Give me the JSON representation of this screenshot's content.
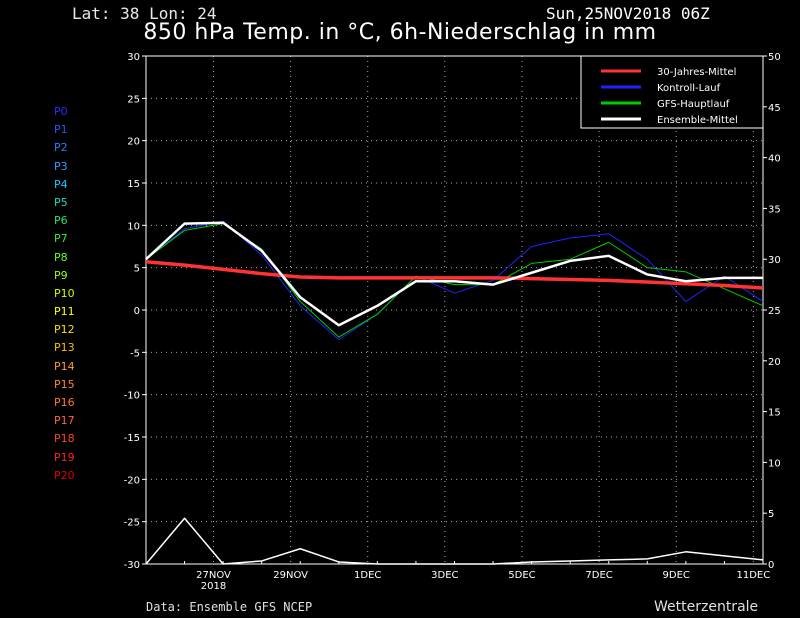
{
  "header": {
    "location": "Lat: 38 Lon: 24",
    "run": "Sun,25NOV2018 06Z",
    "title": "850 hPa Temp. in °C, 6h-Niederschlag in mm"
  },
  "footer": {
    "source": "Data: Ensemble GFS NCEP",
    "brand": "Wetterzentrale"
  },
  "members": [
    {
      "label": "P0",
      "color": "#2a2aff"
    },
    {
      "label": "P1",
      "color": "#2a55ff"
    },
    {
      "label": "P2",
      "color": "#2a7fff"
    },
    {
      "label": "P3",
      "color": "#2aa0ff"
    },
    {
      "label": "P4",
      "color": "#22c8ff"
    },
    {
      "label": "P5",
      "color": "#22d8c0"
    },
    {
      "label": "P6",
      "color": "#22e070"
    },
    {
      "label": "P7",
      "color": "#33ee33"
    },
    {
      "label": "P8",
      "color": "#66ff22"
    },
    {
      "label": "P9",
      "color": "#99ff11"
    },
    {
      "label": "P10",
      "color": "#ccff00"
    },
    {
      "label": "P11",
      "color": "#ffff00"
    },
    {
      "label": "P12",
      "color": "#ffdd00"
    },
    {
      "label": "P13",
      "color": "#ffbb00"
    },
    {
      "label": "P14",
      "color": "#ff9933"
    },
    {
      "label": "P15",
      "color": "#ff8833"
    },
    {
      "label": "P16",
      "color": "#ff7733"
    },
    {
      "label": "P17",
      "color": "#ff6633"
    },
    {
      "label": "P18",
      "color": "#ff4422"
    },
    {
      "label": "P19",
      "color": "#ff2222"
    },
    {
      "label": "P20",
      "color": "#dd0000"
    }
  ],
  "chart_data": {
    "type": "line",
    "title": "850 hPa Temp. in °C, 6h-Niederschlag in mm",
    "x_range": [
      "2018-11-25T06",
      "2018-12-11T06"
    ],
    "x_ticks": [
      {
        "label": "27NOV",
        "sublabel": "2018",
        "date": "2018-11-27"
      },
      {
        "label": "29NOV",
        "date": "2018-11-29"
      },
      {
        "label": "1DEC",
        "date": "2018-12-01"
      },
      {
        "label": "3DEC",
        "date": "2018-12-03"
      },
      {
        "label": "5DEC",
        "date": "2018-12-05"
      },
      {
        "label": "7DEC",
        "date": "2018-12-07"
      },
      {
        "label": "9DEC",
        "date": "2018-12-09"
      },
      {
        "label": "11DEC",
        "date": "2018-12-11"
      }
    ],
    "y_left": {
      "unit": "°C",
      "range": [
        -30,
        30
      ],
      "ticks": [
        -30,
        -25,
        -20,
        -15,
        -10,
        -5,
        0,
        5,
        10,
        15,
        20,
        25,
        30
      ]
    },
    "y_right": {
      "unit": "mm",
      "range": [
        0,
        50
      ],
      "ticks": [
        0,
        5,
        10,
        15,
        20,
        25,
        30,
        35,
        40,
        45,
        50
      ]
    },
    "grid": true,
    "legend_position": "top-right",
    "legend": [
      {
        "label": "30-Jahres-Mittel",
        "color": "#ff3333"
      },
      {
        "label": "Kontroll-Lauf",
        "color": "#2222ff"
      },
      {
        "label": "GFS-Hauptlauf",
        "color": "#00cc00"
      },
      {
        "label": "Ensemble-Mittel",
        "color": "#ffffff"
      }
    ],
    "x_days": [
      0,
      1,
      2,
      3,
      4,
      5,
      6,
      7,
      8,
      9,
      10,
      11,
      12,
      13,
      14,
      15,
      16
    ],
    "series": [
      {
        "name": "30-Jahres-Mittel",
        "color": "#ff3333",
        "axis": "left",
        "values": [
          5.7,
          5.3,
          4.8,
          4.3,
          3.9,
          3.8,
          3.8,
          3.8,
          3.8,
          3.8,
          3.7,
          3.6,
          3.5,
          3.3,
          3.1,
          2.9,
          2.6
        ]
      },
      {
        "name": "Ensemble-Mittel",
        "color": "#ffffff",
        "axis": "left",
        "values": [
          6,
          10.2,
          10.3,
          7,
          1.5,
          -1.8,
          0.5,
          3.4,
          3.4,
          3,
          4.4,
          5.8,
          6.4,
          4.2,
          3.4,
          3.8,
          3.8
        ]
      },
      {
        "name": "Kontroll-Lauf",
        "color": "#2222ff",
        "axis": "left",
        "values": [
          6,
          9.6,
          10.5,
          6.5,
          0.5,
          -3.5,
          -0.5,
          4,
          2,
          3.5,
          7.5,
          8.5,
          9,
          6,
          1,
          4,
          1
        ]
      },
      {
        "name": "GFS-Hauptlauf",
        "color": "#00cc00",
        "axis": "left",
        "values": [
          6,
          9.4,
          10.2,
          7.2,
          1,
          -3.2,
          -0.5,
          4,
          3,
          3,
          5.5,
          6,
          8,
          5,
          4.5,
          2.5,
          0.5
        ]
      },
      {
        "name": "Ensemble-Mittel Niederschlag",
        "color": "#ffffff",
        "axis": "right",
        "values": [
          0,
          4.5,
          0,
          0.3,
          1.5,
          0.2,
          0,
          0,
          0,
          0,
          0.2,
          0.3,
          0.4,
          0.5,
          1.2,
          0.8,
          0.4
        ]
      }
    ]
  }
}
